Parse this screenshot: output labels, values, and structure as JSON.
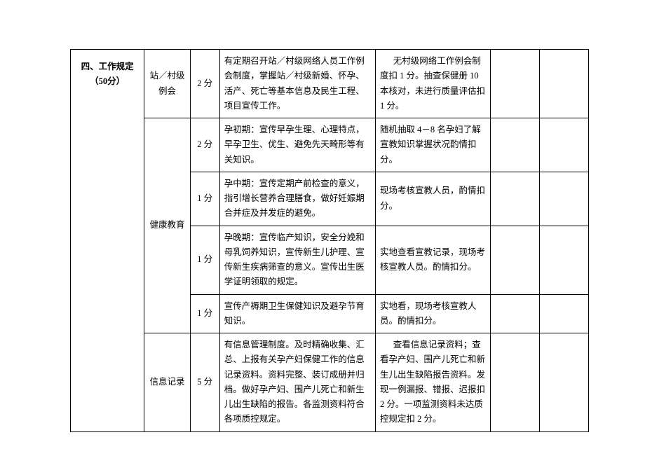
{
  "category": "四、工作规定（50分）",
  "rows": [
    {
      "item": "站／村级例会",
      "score": "2 分",
      "req": "有定期召开站／村级网络人员工作例会制度，掌握站／村级新婚、怀孕、活产、死亡等基本信息及民生工程、项目宣传工作。",
      "eval": "无村级网络工作例会制度扣 1 分。抽查保健册 10 本核对，未进行质量评估扣 1 分。"
    },
    {
      "item": "健康教育",
      "sub": [
        {
          "score": "2 分",
          "req": "孕初期：宣传早孕生理、心理特点，早孕卫生、优生、避免先天畸形等有关知识。",
          "eval": "随机抽取 4－8 名孕妇了解宣教知识掌握状况酌情扣分。"
        },
        {
          "score": "1 分",
          "req": "孕中期：宣传定期产前检查的意义，指引增长营养合理膳食，做好妊娠期合并症及并发症的避免。",
          "eval": "现场考核宣教人员，酌情扣分。"
        },
        {
          "score": "1 分",
          "req": "孕晚期：宣传临产知识，安全分娩和母乳饲养知识，宣传新生儿护理、宣传新生疾病筛查的意义。宣传出生医学证明领取的规定。",
          "eval": "实地查看宣教记录，现场考核宣教人员。酌情扣分。"
        },
        {
          "score": "1 分",
          "req": "宣传产褥期卫生保健知识及避孕节育知识。",
          "eval": "实地看，现场考核宣教人员。酌情扣分。"
        }
      ]
    },
    {
      "item": "信息记录",
      "score": "5 分",
      "req": "有信息管理制度。及时精确收集、汇总、上报有关孕产妇保健工作的信息记录资料。资料完整、装订成册并归档。做好孕产妇、围产儿死亡和新生儿出生缺陷的报告。各监测资料符合各项质控规定。",
      "eval": "查看信息记录资料；查看孕产妇、围产儿死亡和新生儿出生缺陷报告资料。发现一例漏报、错报、迟报扣 2 分。一项监测资料未达质控规定扣 2 分。"
    }
  ]
}
